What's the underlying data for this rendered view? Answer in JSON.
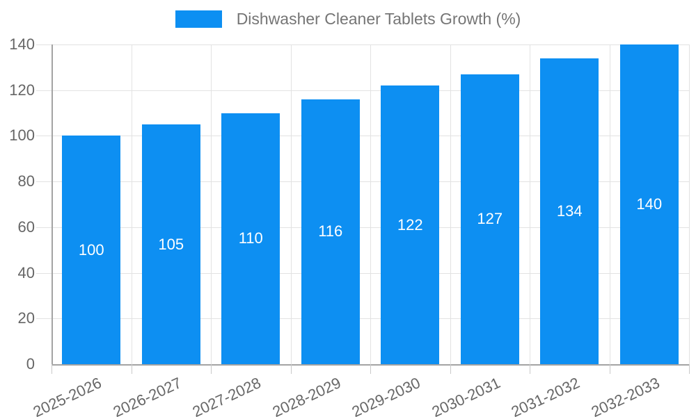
{
  "chart_data": {
    "type": "bar",
    "title": "Dishwasher Cleaner Tablets Growth (%)",
    "legend": {
      "position": "top",
      "entries": [
        "Dishwasher Cleaner Tablets Growth (%)"
      ]
    },
    "categories": [
      "2025-2026",
      "2026-2027",
      "2027-2028",
      "2028-2029",
      "2029-2030",
      "2030-2031",
      "2031-2032",
      "2032-2033"
    ],
    "series": [
      {
        "name": "Dishwasher Cleaner Tablets Growth (%)",
        "values": [
          100,
          105,
          110,
          116,
          122,
          127,
          134,
          140
        ]
      }
    ],
    "value_labels": [
      "100",
      "105",
      "110",
      "116",
      "122",
      "127",
      "134",
      "140"
    ],
    "xlabel": "",
    "ylabel": "",
    "ylim": [
      0,
      140
    ],
    "yticks": [
      0,
      20,
      40,
      60,
      80,
      100,
      120,
      140
    ],
    "grid": "horizontal and vertical light gray gridlines",
    "x_label_rotation_deg": 25,
    "colors": {
      "bar": "#0d8ff2",
      "grid": "#e2e2e2",
      "axis": "#a3a3a3",
      "tick": "#c9c9c9",
      "tick_label": "#666666",
      "legend_text": "#757575",
      "value_label": "#ffffff",
      "background": "#ffffff"
    }
  }
}
